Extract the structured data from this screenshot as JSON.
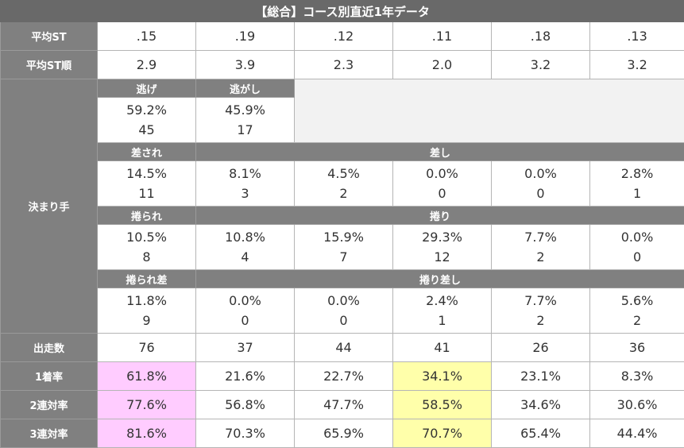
{
  "title": "【総合】コース別直近1年データ",
  "avg_st": {
    "label": "平均ST",
    "values": [
      ".15",
      ".19",
      ".12",
      ".11",
      ".18",
      ".13"
    ]
  },
  "avg_st_rank": {
    "label": "平均ST順",
    "values": [
      "2.9",
      "3.9",
      "2.3",
      "2.0",
      "3.2",
      "3.2"
    ]
  },
  "kimarite": {
    "label": "決まり手",
    "nige": {
      "label": "逃げ",
      "pct": "59.2%",
      "count": "45"
    },
    "nigashi": {
      "label": "逃がし",
      "pct": "45.9%",
      "count": "17"
    },
    "sasare": {
      "label": "差され",
      "pct": "14.5%",
      "count": "11"
    },
    "sashi": {
      "label": "差し",
      "values": [
        {
          "pct": "8.1%",
          "count": "3"
        },
        {
          "pct": "4.5%",
          "count": "2"
        },
        {
          "pct": "0.0%",
          "count": "0"
        },
        {
          "pct": "0.0%",
          "count": "0"
        },
        {
          "pct": "2.8%",
          "count": "1"
        }
      ]
    },
    "makurare": {
      "label": "捲られ",
      "pct": "10.5%",
      "count": "8"
    },
    "makuri": {
      "label": "捲り",
      "values": [
        {
          "pct": "10.8%",
          "count": "4"
        },
        {
          "pct": "15.9%",
          "count": "7"
        },
        {
          "pct": "29.3%",
          "count": "12"
        },
        {
          "pct": "7.7%",
          "count": "2"
        },
        {
          "pct": "0.0%",
          "count": "0"
        }
      ]
    },
    "makurare_sashi": {
      "label": "捲られ差",
      "pct": "11.8%",
      "count": "9"
    },
    "makuri_sashi": {
      "label": "捲り差し",
      "values": [
        {
          "pct": "0.0%",
          "count": "0"
        },
        {
          "pct": "0.0%",
          "count": "0"
        },
        {
          "pct": "2.4%",
          "count": "1"
        },
        {
          "pct": "7.7%",
          "count": "2"
        },
        {
          "pct": "5.6%",
          "count": "2"
        }
      ]
    }
  },
  "starts": {
    "label": "出走数",
    "values": [
      "76",
      "37",
      "44",
      "41",
      "26",
      "36"
    ]
  },
  "win_rate": {
    "label": "1着率",
    "values": [
      "61.8%",
      "21.6%",
      "22.7%",
      "34.1%",
      "23.1%",
      "8.3%"
    ]
  },
  "quinella_rate": {
    "label": "2連対率",
    "values": [
      "77.6%",
      "56.8%",
      "47.7%",
      "58.5%",
      "34.6%",
      "30.6%"
    ]
  },
  "trio_rate": {
    "label": "3連対率",
    "values": [
      "81.6%",
      "70.3%",
      "65.9%",
      "70.7%",
      "65.4%",
      "44.4%"
    ]
  },
  "colors": {
    "header_bg": "#808080",
    "title_bg": "#696969",
    "highlight_pink": "#ffccff",
    "highlight_yellow": "#ffffaa"
  }
}
